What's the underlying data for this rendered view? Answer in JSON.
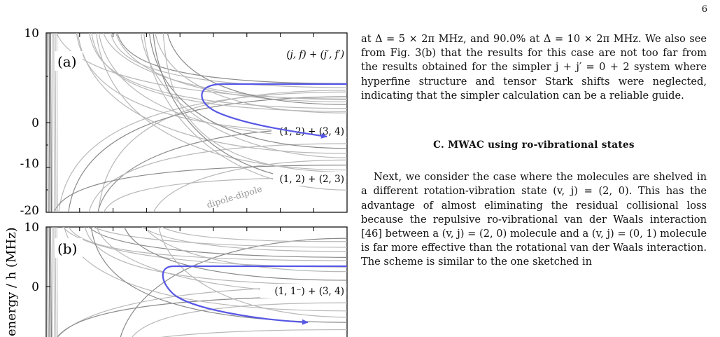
{
  "page": {
    "number": "6"
  },
  "figure": {
    "panel_a": {
      "label": "(a)",
      "annotations": {
        "top_right": "(j, f) + (j′, f′)",
        "middle": "(1, 2) + (3, 4)",
        "lower": "(1, 2) + (2, 3)",
        "curve_label": "dipole-dipole"
      },
      "ticks": [
        "10",
        "0",
        "-10",
        "-20"
      ]
    },
    "panel_b": {
      "label": "(b)",
      "annotations": {
        "middle": "(1, 1⁻) + (3, 4)"
      },
      "ticks": [
        "10",
        "0"
      ]
    },
    "ylabel": "energy / h (MHz)",
    "colors": {
      "curves": "#b8b8b8",
      "dark_curves": "#8a8a8a",
      "arrow": "#5757e6"
    }
  },
  "text": {
    "para1": "at Δ = 5 × 2π MHz, and 90.0% at Δ = 10 × 2π MHz. We also see from Fig. 3(b) that the results for this case are not too far from the results obtained for the simpler j + j′ = 0 + 2 system where hyperfine structure and tensor Stark shifts were neglected, indicating that the simpler calculation can be a reliable guide.",
    "section_heading": "C.   MWAC using ro-vibrational states",
    "para2": "Next, we consider the case where the molecules are shelved in a different rotation-vibration state (v, j) = (2, 0). This has the advantage of almost eliminating the residual collisional loss because the repulsive ro-vibrational van der Waals interaction [46] between a (v, j) = (2, 0) molecule and a (v, j) = (0, 1) molecule is far more effective than the rotational van der Waals interaction. The scheme is similar to the one sketched in"
  }
}
